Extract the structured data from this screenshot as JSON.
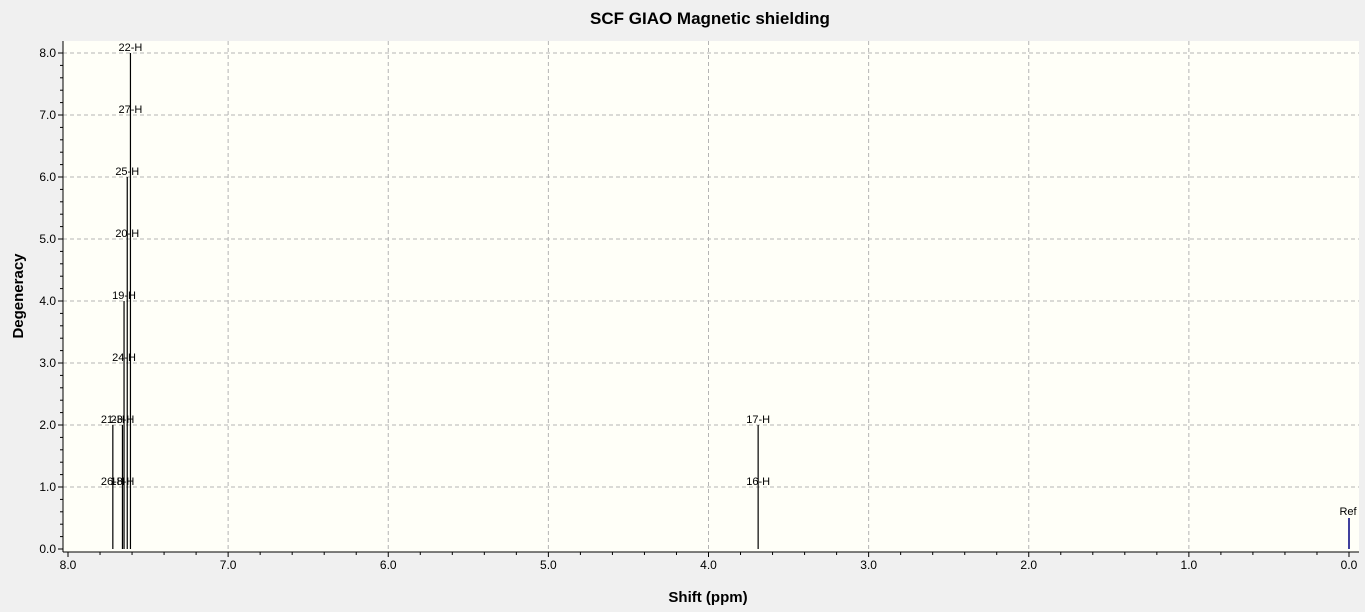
{
  "chart_data": {
    "type": "bar",
    "title": "SCF GIAO Magnetic shielding",
    "xlabel": "Shift (ppm)",
    "ylabel": "Degeneracy",
    "xlim": [
      8.0,
      0.0
    ],
    "ylim": [
      0,
      8.2
    ],
    "x_reversed": true,
    "grid": true,
    "x_ticks": [
      "8.0",
      "7.0",
      "6.0",
      "5.0",
      "4.0",
      "3.0",
      "2.0",
      "1.0",
      "0.0"
    ],
    "y_ticks": [
      "0.0",
      "1.0",
      "2.0",
      "3.0",
      "4.0",
      "5.0",
      "6.0",
      "7.0",
      "8.0"
    ],
    "peaks": [
      {
        "x": 7.72,
        "y": 2,
        "labels": [
          "21-H",
          "26-H"
        ]
      },
      {
        "x": 7.66,
        "y": 2,
        "labels": [
          "23-H",
          "18-H"
        ]
      },
      {
        "x": 7.65,
        "y": 4,
        "labels": [
          "19-H",
          "24-H"
        ]
      },
      {
        "x": 7.63,
        "y": 6,
        "labels": [
          "25-H",
          "20-H"
        ]
      },
      {
        "x": 7.61,
        "y": 8,
        "labels": [
          "22-H",
          "27-H"
        ]
      },
      {
        "x": 3.69,
        "y": 2,
        "labels": [
          "17-H",
          "16-H"
        ]
      }
    ],
    "reference": {
      "x": 0.0,
      "y": 0.5,
      "label": "Ref",
      "color": "#00007f"
    },
    "colors": {
      "plot_bg": "#fffff8",
      "frame_bg": "#f0f0f0",
      "grid": "#b4b4b4",
      "peak": "#000000"
    }
  }
}
